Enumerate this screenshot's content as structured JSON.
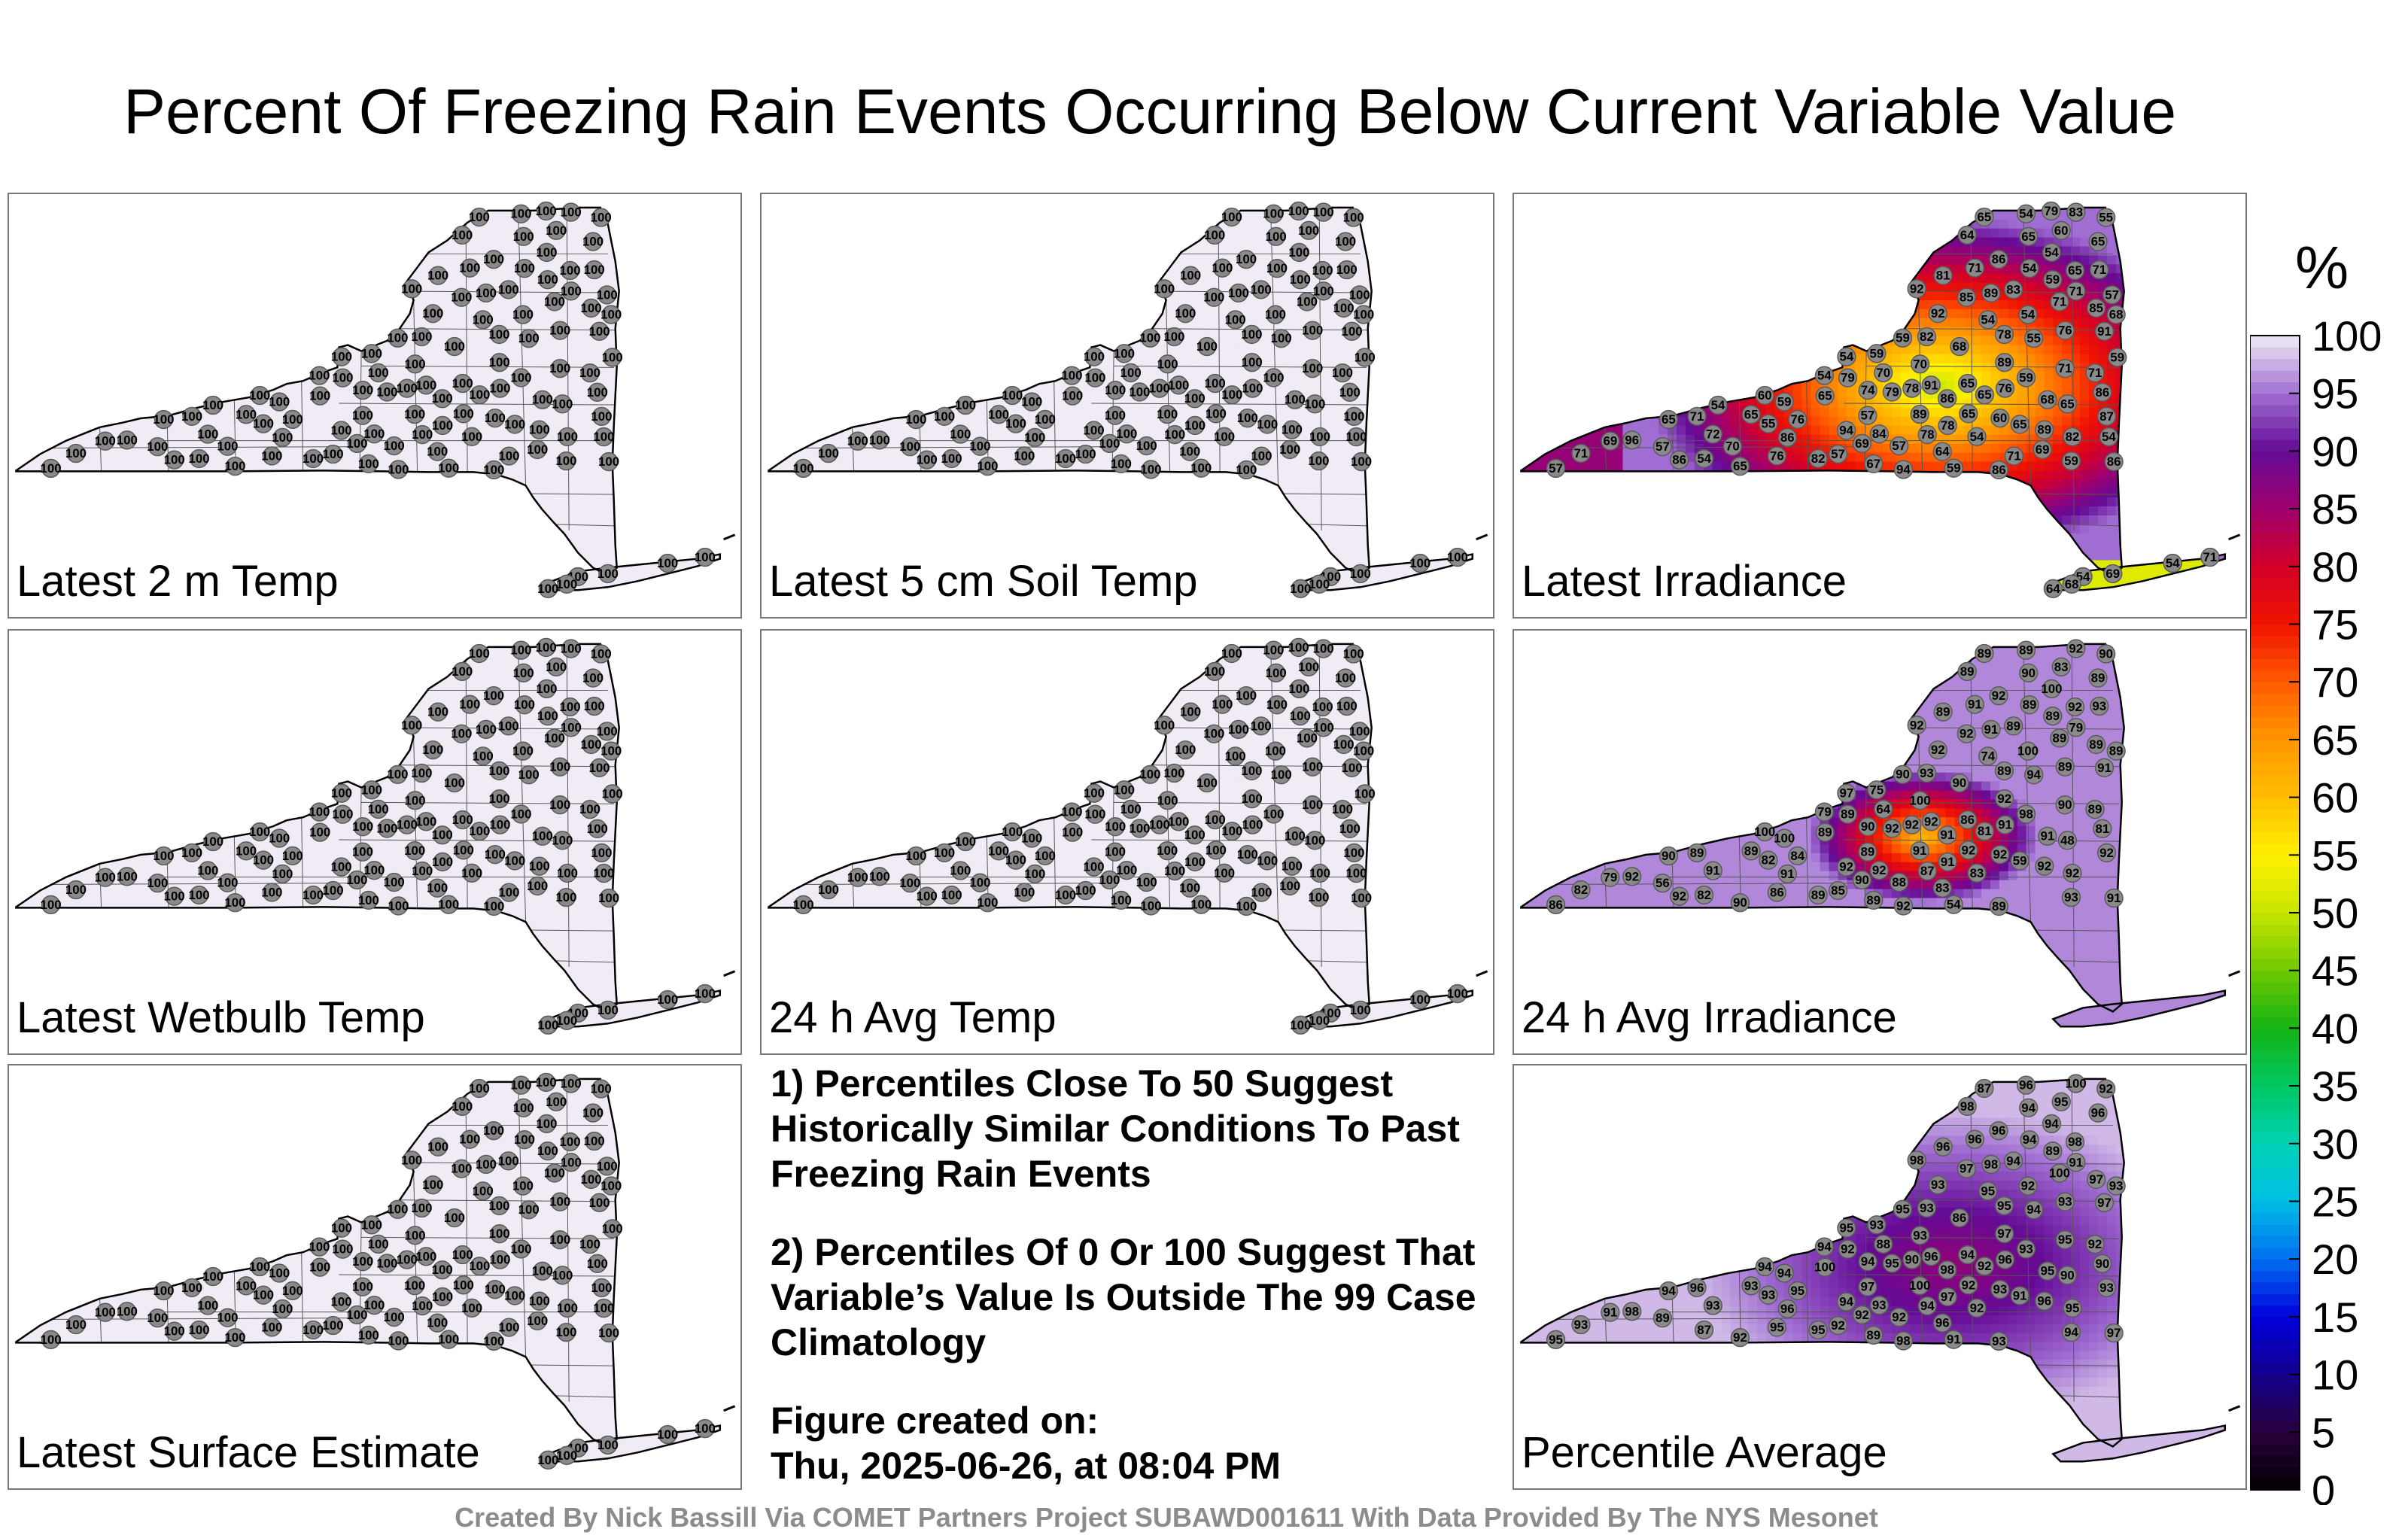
{
  "title": "Percent Of Freezing Rain Events Occurring Below Current Variable Value",
  "panels": [
    {
      "label": "Latest 2 m Temp",
      "mode": "uniform",
      "value": 100
    },
    {
      "label": "Latest 5 cm Soil Temp",
      "mode": "uniform",
      "value": 100
    },
    {
      "label": "Latest Irradiance",
      "mode": "irradiance",
      "stations": [
        92,
        94,
        91,
        96,
        78,
        85,
        86,
        89,
        82,
        91,
        71,
        86,
        83,
        94,
        92,
        81,
        76,
        78,
        79,
        82,
        71,
        76,
        71,
        78,
        74,
        71,
        76,
        72,
        65,
        86,
        84,
        78,
        82,
        86,
        69,
        65,
        71,
        65,
        67,
        68,
        65,
        59,
        55,
        54,
        59,
        70,
        65,
        57,
        65,
        57,
        54,
        59,
        54,
        57,
        60,
        55,
        89,
        87,
        76,
        68,
        65,
        60,
        57,
        54,
        55,
        59,
        65,
        85,
        65,
        64,
        64,
        57,
        54,
        59,
        54,
        71,
        65,
        86,
        83,
        89,
        86,
        89,
        65,
        68,
        60,
        54,
        54,
        59,
        54,
        59,
        70,
        65,
        71,
        79,
        65,
        69,
        71,
        86,
        79,
        71,
        69,
        70,
        59,
        57,
        54,
        54,
        54,
        69,
        54,
        71,
        68,
        64
      ]
    },
    {
      "label": "Latest Wetbulb Temp",
      "mode": "uniform",
      "value": 100
    },
    {
      "label": "24 h Avg Temp",
      "mode": "uniform",
      "value": 100
    },
    {
      "label": "24 h Avg Irradiance",
      "mode": "avgirr",
      "stations": [
        92,
        92,
        92,
        92,
        91,
        92,
        92,
        92,
        92,
        91,
        91,
        91,
        89,
        92,
        92,
        89,
        86,
        89,
        92,
        89,
        90,
        91,
        89,
        87,
        90,
        82,
        84,
        91,
        90,
        89,
        92,
        92,
        93,
        81,
        79,
        81,
        79,
        90,
        89,
        90,
        89,
        89,
        90,
        82,
        54,
        64,
        48,
        56,
        59,
        88,
        79,
        75,
        74,
        86,
        92,
        94,
        92,
        92,
        89,
        89,
        90,
        83,
        85,
        83,
        82,
        93,
        89,
        89,
        86,
        83,
        89,
        89,
        89,
        90,
        89,
        89,
        89,
        91,
        92,
        91,
        91,
        91,
        92,
        91,
        100,
        100,
        97,
        100,
        100,
        98,
        100,
        92,
        89,
        89,
        89,
        90,
        93,
        92
      ]
    },
    {
      "label": "Latest Surface Estimate",
      "mode": "uniform",
      "value": 100
    },
    {
      "label": "Percentile Average",
      "mode": "average",
      "stations": [
        98,
        98,
        96,
        98,
        97,
        97,
        96,
        96,
        95,
        97,
        96,
        96,
        94,
        94,
        93,
        96,
        95,
        95,
        95,
        95,
        95,
        96,
        96,
        94,
        94,
        93,
        95,
        93,
        94,
        93,
        93,
        90,
        93,
        90,
        91,
        92,
        91,
        92,
        89,
        86,
        87,
        89,
        92,
        87,
        91,
        88,
        90,
        89,
        91,
        92,
        94,
        93,
        95,
        95,
        93,
        94,
        97,
        93,
        93,
        93,
        94,
        95,
        92,
        92,
        93,
        94,
        96,
        97,
        94,
        96,
        98,
        97,
        96,
        95,
        94,
        100,
        100,
        97,
        100,
        100,
        98,
        98,
        98,
        95,
        94,
        94,
        95,
        94,
        92,
        93,
        93,
        92,
        92,
        92,
        93,
        92
      ]
    }
  ],
  "notes": {
    "note1": "1) Percentiles Close To 50 Suggest Historically Similar Conditions To Past Freezing Rain Events",
    "note2": "2) Percentiles Of 0 Or 100 Suggest That Variable’s Value Is Outside The 99 Case Climatology",
    "created_label": "Figure created on:",
    "created_value": "Thu, 2025-06-26, at 08:04 PM"
  },
  "colorbar": {
    "unit": "%",
    "ticks": [
      "0",
      "5",
      "10",
      "15",
      "20",
      "25",
      "30",
      "35",
      "40",
      "45",
      "50",
      "55",
      "60",
      "65",
      "70",
      "75",
      "80",
      "85",
      "90",
      "95",
      "100"
    ]
  },
  "footer": "Created By Nick Bassill Via COMET Partners Project SUBAWD001611 With Data Provided By The NYS Mesonet"
}
